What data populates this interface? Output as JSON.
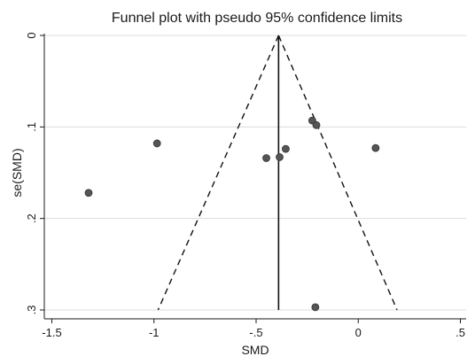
{
  "chart_data": {
    "type": "scatter",
    "title": "Funnel plot with pseudo 95% confidence limits",
    "xlabel": "SMD",
    "ylabel": "se(SMD)",
    "xlim": [
      -1.5,
      0.5
    ],
    "ylim": [
      0,
      0.3
    ],
    "y_reversed": true,
    "x_ticks": [
      -1.5,
      -1,
      -0.5,
      0,
      0.5
    ],
    "x_tick_labels": [
      "-1.5",
      "-1",
      "-.5",
      "0",
      ".5"
    ],
    "y_ticks": [
      0,
      0.1,
      0.2,
      0.3
    ],
    "y_tick_labels": [
      "0",
      ".1",
      ".2",
      ".3"
    ],
    "grid": true,
    "points": [
      {
        "x": -1.32,
        "y": 0.172
      },
      {
        "x": -0.985,
        "y": 0.118
      },
      {
        "x": -0.45,
        "y": 0.134
      },
      {
        "x": -0.385,
        "y": 0.133
      },
      {
        "x": -0.355,
        "y": 0.124
      },
      {
        "x": -0.225,
        "y": 0.093
      },
      {
        "x": -0.205,
        "y": 0.098
      },
      {
        "x": -0.21,
        "y": 0.297
      },
      {
        "x": 0.085,
        "y": 0.123
      }
    ],
    "pooled_estimate": -0.39,
    "pseudo_ci_lines": {
      "apex": [
        -0.39,
        0
      ],
      "left_end": [
        -0.98,
        0.3
      ],
      "right_end": [
        0.19,
        0.3
      ]
    },
    "colors": {
      "point": "#555555",
      "point_stroke": "#333333",
      "grid": "#dcdcdc",
      "axis": "#1a1a1a",
      "line": "#111111"
    }
  }
}
